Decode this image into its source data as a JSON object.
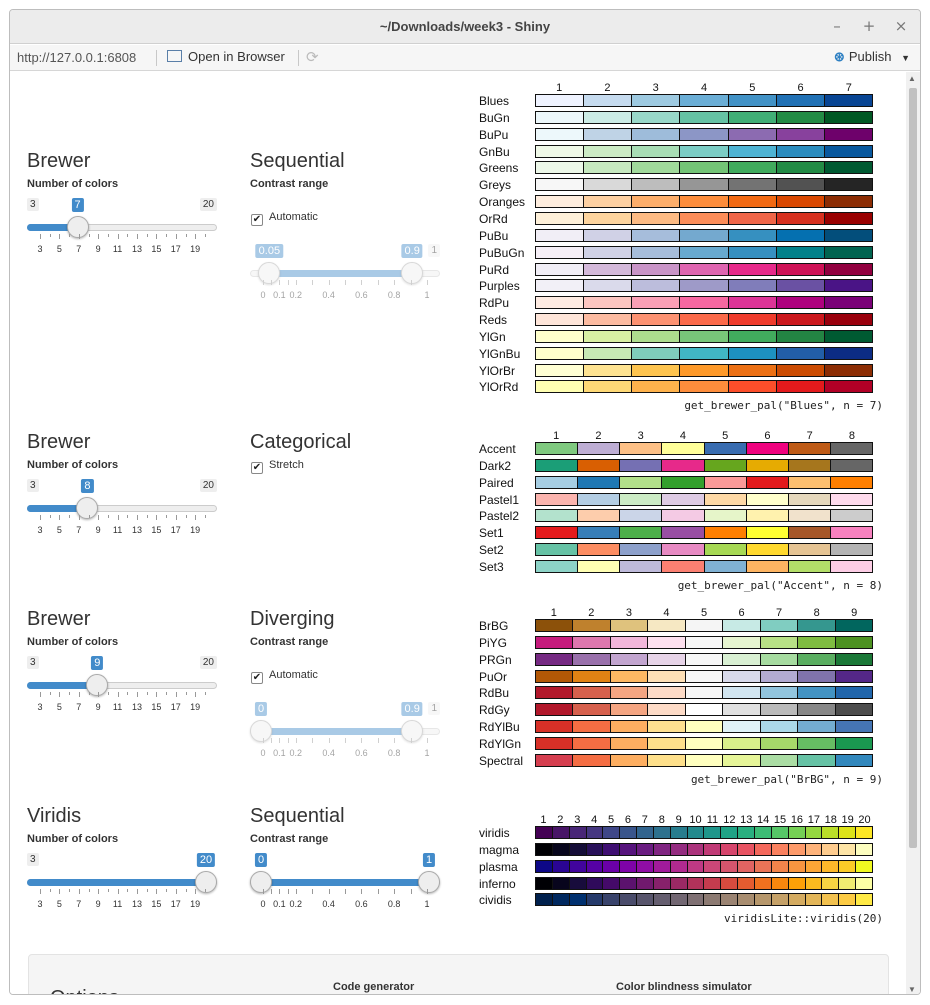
{
  "window": {
    "title": "~/Downloads/week3 - Shiny",
    "controls": [
      "–",
      "+",
      "×"
    ]
  },
  "toolbar": {
    "url": "http://127.0.0.1:6808",
    "open_in_browser": "Open in Browser",
    "publish": "Publish"
  },
  "sections": [
    {
      "title": "Brewer",
      "num_label": "Number of colors",
      "slider": {
        "min": 3,
        "max": 20,
        "value": 7,
        "min_label": "3",
        "max_label": "20",
        "value_label": "7",
        "ticks": [
          "3",
          "5",
          "7",
          "9",
          "11",
          "13",
          "15",
          "17",
          "19"
        ]
      },
      "type_title": "Sequential",
      "type_label": "Contrast range",
      "checkbox_label": "Automatic",
      "checkbox_checked": true,
      "range": {
        "from_label": "0.05",
        "to_label": "0.9",
        "max_label": "1",
        "from": 0.05,
        "to": 0.9,
        "ticks": [
          "0",
          "0.1",
          "0.2",
          "0.4",
          "0.6",
          "0.8",
          "1"
        ],
        "disabled": true
      }
    },
    {
      "title": "Brewer",
      "num_label": "Number of colors",
      "slider": {
        "min": 3,
        "max": 20,
        "value": 8,
        "min_label": "3",
        "max_label": "20",
        "value_label": "8",
        "ticks": [
          "3",
          "5",
          "7",
          "9",
          "11",
          "13",
          "15",
          "17",
          "19"
        ]
      },
      "type_title": "Categorical",
      "checkbox_label": "Stretch",
      "checkbox_checked": true
    },
    {
      "title": "Brewer",
      "num_label": "Number of colors",
      "slider": {
        "min": 3,
        "max": 20,
        "value": 9,
        "min_label": "3",
        "max_label": "20",
        "value_label": "9",
        "ticks": [
          "3",
          "5",
          "7",
          "9",
          "11",
          "13",
          "15",
          "17",
          "19"
        ]
      },
      "type_title": "Diverging",
      "type_label": "Contrast range",
      "checkbox_label": "Automatic",
      "checkbox_checked": true,
      "range": {
        "from_label": "0",
        "to_label": "0.9",
        "max_label": "1",
        "from": 0,
        "to": 0.9,
        "ticks": [
          "0",
          "0.1",
          "0.2",
          "0.4",
          "0.6",
          "0.8",
          "1"
        ],
        "disabled": true
      }
    },
    {
      "title": "Viridis",
      "num_label": "Number of colors",
      "slider": {
        "min": 3,
        "max": 20,
        "value": 20,
        "min_label": "3",
        "max_label": "",
        "value_label": "20",
        "ticks": [
          "3",
          "5",
          "7",
          "9",
          "11",
          "13",
          "15",
          "17",
          "19"
        ]
      },
      "type_title": "Sequential",
      "type_label": "Contrast range",
      "range": {
        "from_label": "0",
        "to_label": "1",
        "max_label": "",
        "from": 0,
        "to": 1,
        "ticks": [
          "0",
          "0.1",
          "0.2",
          "0.4",
          "0.6",
          "0.8",
          "1"
        ],
        "disabled": false
      }
    }
  ],
  "palettes": [
    {
      "code": "get_brewer_pal(\"Blues\", n = 7)",
      "headers": [
        "1",
        "2",
        "3",
        "4",
        "5",
        "6",
        "7"
      ],
      "rows": [
        {
          "name": "Blues",
          "colors": [
            "#eff3ff",
            "#c6dbef",
            "#9ecae1",
            "#6baed6",
            "#4292c6",
            "#2171b5",
            "#084594"
          ]
        },
        {
          "name": "BuGn",
          "colors": [
            "#edf8fb",
            "#ccece6",
            "#99d8c9",
            "#66c2a4",
            "#41ae76",
            "#238b45",
            "#005824"
          ]
        },
        {
          "name": "BuPu",
          "colors": [
            "#edf8fb",
            "#bfd3e6",
            "#9ebcda",
            "#8c96c6",
            "#8c6bb1",
            "#88419d",
            "#6e016b"
          ]
        },
        {
          "name": "GnBu",
          "colors": [
            "#f0f9e8",
            "#ccebc5",
            "#a8ddb5",
            "#7bccc4",
            "#4eb3d3",
            "#2b8cbe",
            "#08589e"
          ]
        },
        {
          "name": "Greens",
          "colors": [
            "#edf8e9",
            "#c7e9c0",
            "#a1d99b",
            "#74c476",
            "#41ab5d",
            "#238b45",
            "#005a32"
          ]
        },
        {
          "name": "Greys",
          "colors": [
            "#f7f7f7",
            "#d9d9d9",
            "#bdbdbd",
            "#969696",
            "#737373",
            "#525252",
            "#252525"
          ]
        },
        {
          "name": "Oranges",
          "colors": [
            "#feedde",
            "#fdd0a2",
            "#fdae6b",
            "#fd8d3c",
            "#f16913",
            "#d94801",
            "#8c2d04"
          ]
        },
        {
          "name": "OrRd",
          "colors": [
            "#fef0d9",
            "#fdd49e",
            "#fdbb84",
            "#fc8d59",
            "#ef6548",
            "#d7301f",
            "#990000"
          ]
        },
        {
          "name": "PuBu",
          "colors": [
            "#f1eef6",
            "#d0d1e6",
            "#a6bddb",
            "#74a9cf",
            "#3690c0",
            "#0570b0",
            "#034e7b"
          ]
        },
        {
          "name": "PuBuGn",
          "colors": [
            "#f6eff7",
            "#d0d1e6",
            "#a6bddb",
            "#67a9cf",
            "#3690c0",
            "#02818a",
            "#016450"
          ]
        },
        {
          "name": "PuRd",
          "colors": [
            "#f1eef6",
            "#d4b9da",
            "#c994c7",
            "#df65b0",
            "#e7298a",
            "#ce1256",
            "#91003f"
          ]
        },
        {
          "name": "Purples",
          "colors": [
            "#f2f0f7",
            "#dadaeb",
            "#bcbddc",
            "#9e9ac8",
            "#807dba",
            "#6a51a3",
            "#4a1486"
          ]
        },
        {
          "name": "RdPu",
          "colors": [
            "#feebe2",
            "#fcc5c0",
            "#fa9fb5",
            "#f768a1",
            "#dd3497",
            "#ae017e",
            "#7a0177"
          ]
        },
        {
          "name": "Reds",
          "colors": [
            "#fee5d9",
            "#fcbba1",
            "#fc9272",
            "#fb6a4a",
            "#ef3b2c",
            "#cb181d",
            "#99000d"
          ]
        },
        {
          "name": "YlGn",
          "colors": [
            "#ffffcc",
            "#d9f0a3",
            "#addd8e",
            "#78c679",
            "#41ab5d",
            "#238443",
            "#005a32"
          ]
        },
        {
          "name": "YlGnBu",
          "colors": [
            "#ffffcc",
            "#c7e9b4",
            "#7fcdbb",
            "#41b6c4",
            "#1d91c0",
            "#225ea8",
            "#0c2c84"
          ]
        },
        {
          "name": "YlOrBr",
          "colors": [
            "#ffffd4",
            "#fee391",
            "#fec44f",
            "#fe9929",
            "#ec7014",
            "#cc4c02",
            "#8c2d04"
          ]
        },
        {
          "name": "YlOrRd",
          "colors": [
            "#ffffb2",
            "#fed976",
            "#feb24c",
            "#fd8d3c",
            "#fc4e2a",
            "#e31a1c",
            "#b10026"
          ]
        }
      ]
    },
    {
      "code": "get_brewer_pal(\"Accent\", n = 8)",
      "headers": [
        "1",
        "2",
        "3",
        "4",
        "5",
        "6",
        "7",
        "8"
      ],
      "rows": [
        {
          "name": "Accent",
          "colors": [
            "#7fc97f",
            "#beaed4",
            "#fdc086",
            "#ffff99",
            "#386cb0",
            "#f0027f",
            "#bf5b17",
            "#666666"
          ]
        },
        {
          "name": "Dark2",
          "colors": [
            "#1b9e77",
            "#d95f02",
            "#7570b3",
            "#e7298a",
            "#66a61e",
            "#e6ab02",
            "#a6761d",
            "#666666"
          ]
        },
        {
          "name": "Paired",
          "colors": [
            "#a6cee3",
            "#1f78b4",
            "#b2df8a",
            "#33a02c",
            "#fb9a99",
            "#e31a1c",
            "#fdbf6f",
            "#ff7f00"
          ]
        },
        {
          "name": "Pastel1",
          "colors": [
            "#fbb4ae",
            "#b3cde3",
            "#ccebc5",
            "#decbe4",
            "#fed9a6",
            "#ffffcc",
            "#e5d8bd",
            "#fddaec"
          ]
        },
        {
          "name": "Pastel2",
          "colors": [
            "#b3e2cd",
            "#fdcdac",
            "#cbd5e8",
            "#f4cae4",
            "#e6f5c9",
            "#fff2ae",
            "#f1e2cc",
            "#cccccc"
          ]
        },
        {
          "name": "Set1",
          "colors": [
            "#e41a1c",
            "#377eb8",
            "#4daf4a",
            "#984ea3",
            "#ff7f00",
            "#ffff33",
            "#a65628",
            "#f781bf"
          ]
        },
        {
          "name": "Set2",
          "colors": [
            "#66c2a5",
            "#fc8d62",
            "#8da0cb",
            "#e78ac3",
            "#a6d854",
            "#ffd92f",
            "#e5c494",
            "#b3b3b3"
          ]
        },
        {
          "name": "Set3",
          "colors": [
            "#8dd3c7",
            "#ffffb3",
            "#bebada",
            "#fb8072",
            "#80b1d3",
            "#fdb462",
            "#b3de69",
            "#fccde5"
          ]
        }
      ]
    },
    {
      "code": "get_brewer_pal(\"BrBG\", n = 9)",
      "headers": [
        "1",
        "2",
        "3",
        "4",
        "5",
        "6",
        "7",
        "8",
        "9"
      ],
      "rows": [
        {
          "name": "BrBG",
          "colors": [
            "#8c510a",
            "#bf812d",
            "#dfc27d",
            "#f6e8c3",
            "#f5f5f5",
            "#c7eae5",
            "#80cdc1",
            "#35978f",
            "#01665e"
          ]
        },
        {
          "name": "PiYG",
          "colors": [
            "#c51b7d",
            "#de77ae",
            "#f1b6da",
            "#fde0ef",
            "#f7f7f7",
            "#e6f5d0",
            "#b8e186",
            "#7fbc41",
            "#4d9221"
          ]
        },
        {
          "name": "PRGn",
          "colors": [
            "#762a83",
            "#9970ab",
            "#c2a5cf",
            "#e7d4e8",
            "#f7f7f7",
            "#d9f0d3",
            "#a6dba0",
            "#5aae61",
            "#1b7837"
          ]
        },
        {
          "name": "PuOr",
          "colors": [
            "#b35806",
            "#e08214",
            "#fdb863",
            "#fee0b6",
            "#f7f7f7",
            "#d8daeb",
            "#b2abd2",
            "#8073ac",
            "#542788"
          ]
        },
        {
          "name": "RdBu",
          "colors": [
            "#b2182b",
            "#d6604d",
            "#f4a582",
            "#fddbc7",
            "#f7f7f7",
            "#d1e5f0",
            "#92c5de",
            "#4393c3",
            "#2166ac"
          ]
        },
        {
          "name": "RdGy",
          "colors": [
            "#b2182b",
            "#d6604d",
            "#f4a582",
            "#fddbc7",
            "#ffffff",
            "#e0e0e0",
            "#bababa",
            "#878787",
            "#4d4d4d"
          ]
        },
        {
          "name": "RdYlBu",
          "colors": [
            "#d73027",
            "#f46d43",
            "#fdae61",
            "#fee090",
            "#ffffbf",
            "#e0f3f8",
            "#abd9e9",
            "#74add1",
            "#4575b4"
          ]
        },
        {
          "name": "RdYlGn",
          "colors": [
            "#d73027",
            "#f46d43",
            "#fdae61",
            "#fee08b",
            "#ffffbf",
            "#d9ef8b",
            "#a6d96a",
            "#66bd63",
            "#1a9850"
          ]
        },
        {
          "name": "Spectral",
          "colors": [
            "#d53e4f",
            "#f46d43",
            "#fdae61",
            "#fee08b",
            "#ffffbf",
            "#e6f598",
            "#abdda4",
            "#66c2a5",
            "#3288bd"
          ]
        }
      ]
    },
    {
      "code": "viridisLite::viridis(20)",
      "headers": [
        "1",
        "2",
        "3",
        "4",
        "5",
        "6",
        "7",
        "8",
        "9",
        "10",
        "11",
        "12",
        "13",
        "14",
        "15",
        "16",
        "17",
        "18",
        "19",
        "20"
      ],
      "rows": [
        {
          "name": "viridis",
          "colors": [
            "#440154",
            "#481567",
            "#482677",
            "#453781",
            "#3f4788",
            "#39558c",
            "#32648e",
            "#2d718e",
            "#287d8e",
            "#238a8d",
            "#1f968b",
            "#20a386",
            "#29af7f",
            "#3cbc75",
            "#56c667",
            "#75d054",
            "#95d840",
            "#bade28",
            "#dde318",
            "#fde725"
          ]
        },
        {
          "name": "magma",
          "colors": [
            "#000004",
            "#07061c",
            "#150e38",
            "#29115a",
            "#3f0f72",
            "#56147d",
            "#6a1c81",
            "#802582",
            "#942c80",
            "#ab337c",
            "#c03a76",
            "#d6456c",
            "#e85362",
            "#f4685c",
            "#fa815f",
            "#fd9a6a",
            "#feb37b",
            "#fecc8f",
            "#fde4a6",
            "#fcfdbf"
          ]
        },
        {
          "name": "plasma",
          "colors": [
            "#0d0887",
            "#2a0593",
            "#41049d",
            "#5601a4",
            "#6a00a8",
            "#7e03a8",
            "#8f0da4",
            "#a11b9b",
            "#b12a90",
            "#bf3984",
            "#cc4778",
            "#d6556d",
            "#e16462",
            "#ea7457",
            "#f2844b",
            "#f89540",
            "#fca636",
            "#fdb82a",
            "#fbcc27",
            "#f0f921"
          ]
        },
        {
          "name": "inferno",
          "colors": [
            "#000004",
            "#08051d",
            "#180c3c",
            "#2f0a5b",
            "#450a69",
            "#5c126e",
            "#71196e",
            "#87216b",
            "#9b2964",
            "#b1325a",
            "#c43c4e",
            "#d74b3f",
            "#e55c30",
            "#f1711f",
            "#f8870e",
            "#fca108",
            "#fbba1f",
            "#f6d543",
            "#f1ed71",
            "#fcffa4"
          ]
        },
        {
          "name": "cividis",
          "colors": [
            "#00204d",
            "#00285f",
            "#00306f",
            "#253a6b",
            "#39436b",
            "#4a4c6b",
            "#58556c",
            "#655e6f",
            "#726772",
            "#7f7073",
            "#8c7a72",
            "#9a8372",
            "#a88d70",
            "#b6976c",
            "#c5a168",
            "#d4ab61",
            "#e3b659",
            "#f2c14f",
            "#fccb44",
            "#ffea46"
          ]
        }
      ]
    }
  ],
  "options": {
    "title": "Options",
    "code_generator": "Code generator",
    "color_blindness": "Color blindness simulator"
  }
}
